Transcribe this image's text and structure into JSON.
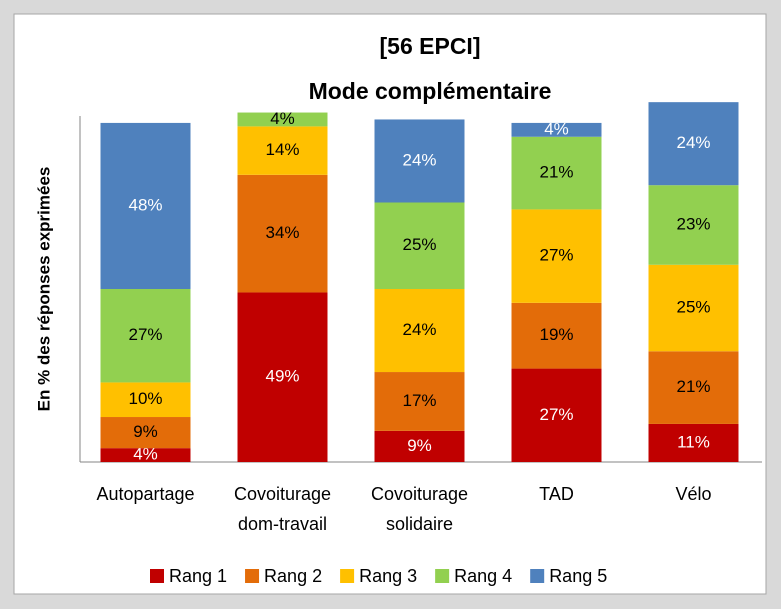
{
  "chart_data": {
    "type": "stacked_bar",
    "title": "[56 EPCI]",
    "subtitle": "Mode complémentaire",
    "y_label": "En % des réponses exprimées",
    "categories": [
      "Autopartage",
      "Covoiturage dom-travail",
      "Covoiturage solidaire",
      "TAD",
      "Vélo"
    ],
    "ylim": [
      0,
      100
    ],
    "series": [
      {
        "name": "Rang 1",
        "color": "#c00000",
        "label_color": "#ffffff",
        "values": [
          4,
          49,
          9,
          27,
          11
        ],
        "value_labels": [
          "4%",
          "49%",
          "9%",
          "27%",
          "11%"
        ]
      },
      {
        "name": "Rang 2",
        "color": "#e36c09",
        "label_color": "#000000",
        "values": [
          9,
          34,
          17,
          19,
          21
        ],
        "value_labels": [
          "9%",
          "34%",
          "17%",
          "19%",
          "21%"
        ]
      },
      {
        "name": "Rang 3",
        "color": "#ffc000",
        "label_color": "#000000",
        "values": [
          10,
          14,
          24,
          27,
          25
        ],
        "value_labels": [
          "10%",
          "14%",
          "24%",
          "27%",
          "25%"
        ]
      },
      {
        "name": "Rang 4",
        "color": "#92d050",
        "label_color": "#000000",
        "values": [
          27,
          4,
          25,
          21,
          23
        ],
        "value_labels": [
          "27%",
          "4%",
          "25%",
          "21%",
          "23%"
        ]
      },
      {
        "name": "Rang 5",
        "color": "#4f81bd",
        "label_color": "#ffffff",
        "values": [
          48,
          null,
          24,
          4,
          24
        ],
        "value_labels": [
          "48%",
          null,
          "24%",
          "4%",
          "24%"
        ]
      }
    ]
  }
}
